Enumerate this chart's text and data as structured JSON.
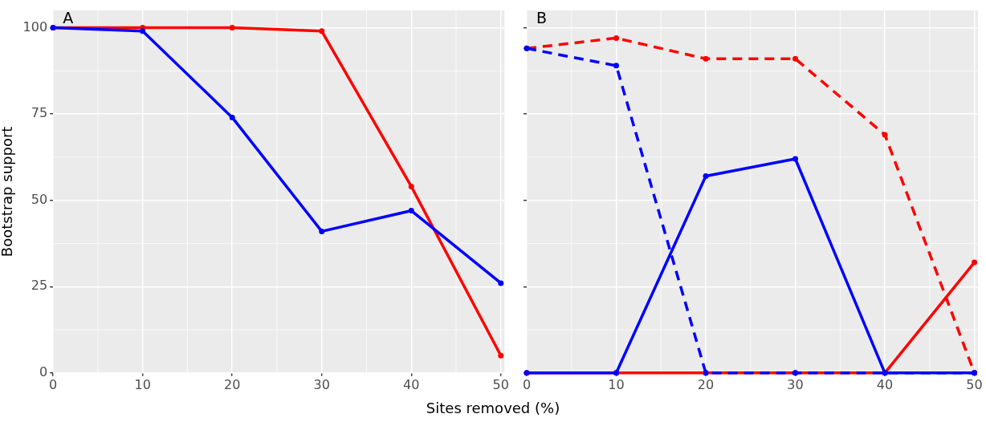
{
  "chart_data": [
    {
      "type": "line",
      "title": "A",
      "xlabel": "Sites removed (%)",
      "ylabel": "Bootstrap support",
      "x": [
        0,
        10,
        20,
        30,
        40,
        50
      ],
      "xlim": [
        0,
        50.4
      ],
      "ylim": [
        0,
        105
      ],
      "xticks": [
        0,
        10,
        20,
        30,
        40,
        50
      ],
      "yticks": [
        0,
        25,
        50,
        75,
        100
      ],
      "grid": true,
      "marker": "circle",
      "series": [
        {
          "color": "#ff0000",
          "line_style": "solid",
          "values": [
            100,
            100,
            100,
            99,
            54,
            5
          ]
        },
        {
          "color": "#0000ff",
          "line_style": "solid",
          "values": [
            100,
            99,
            74,
            41,
            47,
            26
          ]
        }
      ]
    },
    {
      "type": "line",
      "title": "B",
      "x": [
        0,
        10,
        20,
        30,
        40,
        50
      ],
      "xlim": [
        0,
        50.4
      ],
      "ylim": [
        0,
        105
      ],
      "xticks": [
        0,
        10,
        20,
        30,
        40,
        50
      ],
      "yticks": [
        0,
        25,
        50,
        75,
        100
      ],
      "grid": true,
      "marker": "circle",
      "tick_labels": "x",
      "series": [
        {
          "color": "#ff0000",
          "line_style": "solid",
          "values": [
            0,
            0,
            0,
            0,
            0,
            32
          ]
        },
        {
          "color": "#0000ff",
          "line_style": "solid",
          "values": [
            0,
            0,
            57,
            62,
            0,
            0
          ]
        },
        {
          "color": "#ff0000",
          "line_style": "dashed",
          "values": [
            94,
            97,
            91,
            91,
            69,
            0
          ]
        },
        {
          "color": "#0000ff",
          "line_style": "dashed",
          "values": [
            94,
            89,
            0,
            0,
            0,
            0
          ]
        }
      ]
    }
  ]
}
